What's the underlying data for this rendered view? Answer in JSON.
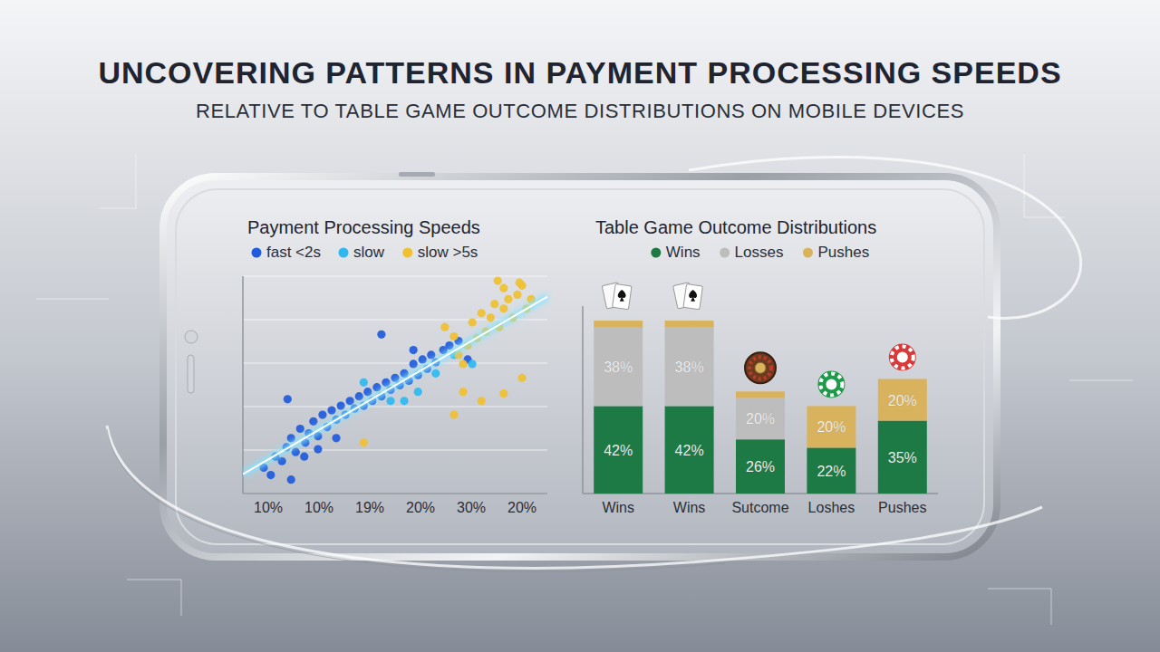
{
  "header": {
    "title": "UNCOVERING PATTERNS IN PAYMENT PROCESSING SPEEDS",
    "subtitle": "RELATIVE TO TABLE GAME OUTCOME DISTRIBUTIONS ON MOBILE DEVICES"
  },
  "chart_data": [
    {
      "type": "scatter",
      "title": "Payment Processing Speeds",
      "categories": [
        "10%",
        "10%",
        "19%",
        "20%",
        "30%",
        "20%"
      ],
      "xlim": [
        -0.5,
        5.5
      ],
      "ylim": [
        0,
        10
      ],
      "yticks": [
        0,
        2,
        4,
        6,
        8,
        10
      ],
      "grid": true,
      "tick_labels": "x",
      "legend": "top",
      "series": [
        {
          "name": "fast <2s",
          "color": "#1f5bdc",
          "marker": "circle",
          "x": [
            -0.09,
            0.14,
            0.05,
            0.27,
            0.36,
            0.45,
            0.54,
            0.63,
            0.73,
            0.8,
            0.89,
            0.98,
            1.07,
            1.16,
            1.25,
            1.34,
            1.43,
            1.52,
            1.61,
            1.7,
            1.79,
            1.88,
            1.96,
            2.05,
            2.14,
            2.23,
            2.32,
            2.41,
            2.5,
            2.59,
            2.68,
            2.77,
            2.86,
            2.95,
            3.04,
            3.13,
            3.21,
            3.3,
            3.45,
            3.57,
            0.45,
            0.71,
            0.98,
            1.34,
            0.38,
            2.23,
            2.86,
            3.75,
            3.93
          ],
          "values": [
            1.19,
            1.7,
            0.85,
            1.49,
            2.13,
            2.55,
            1.91,
            2.98,
            2.34,
            2.77,
            3.32,
            2.64,
            3.62,
            3.06,
            3.83,
            3.4,
            4.04,
            3.62,
            4.26,
            3.91,
            4.47,
            4.04,
            4.68,
            4.26,
            4.89,
            4.47,
            5.11,
            4.77,
            5.32,
            4.98,
            5.53,
            5.19,
            5.96,
            5.45,
            6.17,
            5.74,
            6.38,
            6.04,
            6.6,
            6.81,
            0.64,
            1.7,
            2.04,
            2.55,
            4.34,
            7.32,
            6.6,
            7.02,
            6.17
          ]
        },
        {
          "name": "slow",
          "color": "#2fb8f0",
          "marker": "circle",
          "x": [
            1.88,
            2.41,
            2.95,
            3.3,
            3.66,
            4.02,
            2.68
          ],
          "values": [
            5.11,
            4.26,
            4.68,
            5.53,
            6.38,
            5.96,
            4.26
          ]
        },
        {
          "name": "slow >5s",
          "color": "#f0c030",
          "marker": "circle",
          "x": [
            3.48,
            3.66,
            3.75,
            3.84,
            3.93,
            4.02,
            4.11,
            4.2,
            4.29,
            4.38,
            4.46,
            4.55,
            4.64,
            4.73,
            4.82,
            4.91,
            5.0,
            5.09,
            5.18,
            4.64,
            4.52,
            4.95,
            3.84,
            4.2,
            4.64,
            5.0,
            3.66,
            1.88
          ],
          "values": [
            7.66,
            7.23,
            6.38,
            5.96,
            6.81,
            7.87,
            7.15,
            8.3,
            7.45,
            8.09,
            8.72,
            7.66,
            8.51,
            8.94,
            8.09,
            9.15,
            9.57,
            8.51,
            8.94,
            9.45,
            9.79,
            9.7,
            4.68,
            4.26,
            4.6,
            5.32,
            3.62,
            2.34
          ]
        }
      ]
    },
    {
      "type": "bar",
      "title": "Table Game Outcome Distributions",
      "stacked": true,
      "data_labels": true,
      "categories": [
        "Wins",
        "Wins",
        "Sutcome",
        "Loshes",
        "Pushes"
      ],
      "ylim": [
        0,
        90
      ],
      "tick_labels": "x",
      "grid": false,
      "legend": "top",
      "series": [
        {
          "name": "Wins",
          "color": "#1e7a45",
          "values": [
            42,
            42,
            26,
            22,
            35
          ],
          "value_labels": [
            "42%",
            "42%",
            "26%",
            "22%",
            "35%"
          ]
        },
        {
          "name": "Losses",
          "color": "#bdbdbd",
          "values": [
            38,
            38,
            20,
            null,
            null
          ],
          "value_labels": [
            "38%",
            "38%",
            "20%",
            null,
            null
          ]
        },
        {
          "name": "Pushes",
          "color": "#d9b25e",
          "values": [
            3,
            3,
            3,
            20,
            20
          ],
          "value_labels": [
            null,
            null,
            null,
            "20%",
            "20%"
          ]
        }
      ]
    }
  ]
}
